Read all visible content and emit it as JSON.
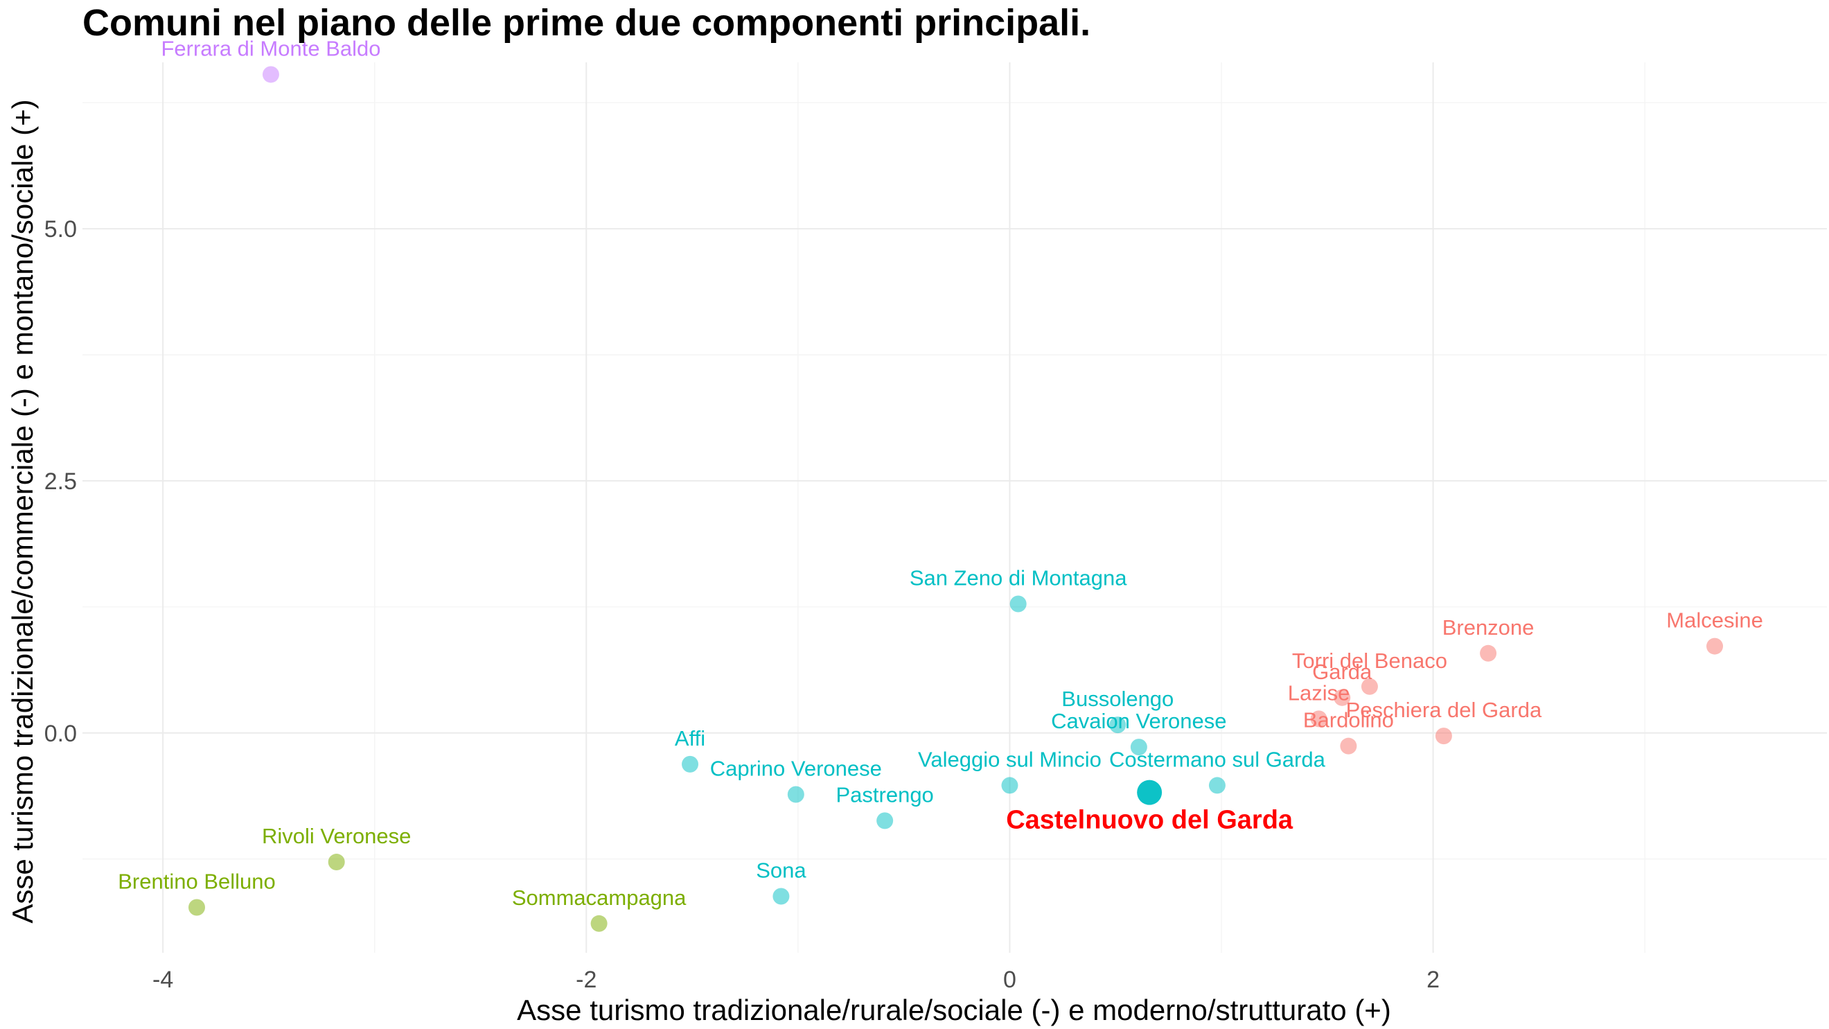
{
  "chart_data": {
    "type": "scatter",
    "title": "Comuni nel piano delle prime due componenti principali.",
    "xlabel": "Asse turismo tradizionale/rurale/sociale (-) e moderno/strutturato (+)",
    "ylabel": "Asse turismo tradizionale/commerciale (-) e montano/sociale (+)",
    "xlim": [
      -4.38,
      3.86
    ],
    "ylim": [
      -2.18,
      6.65
    ],
    "x_ticks": [
      {
        "value": -4,
        "label": "-4"
      },
      {
        "value": -2,
        "label": "-2"
      },
      {
        "value": 0,
        "label": "0"
      },
      {
        "value": 2,
        "label": "2"
      }
    ],
    "y_ticks": [
      {
        "value": 0,
        "label": "0.0"
      },
      {
        "value": 2.5,
        "label": "2.5"
      },
      {
        "value": 5,
        "label": "5.0"
      }
    ],
    "grid": true,
    "legend": "none",
    "colors": {
      "cluster_red": "#f8766d",
      "cluster_olive": "#7cae00",
      "cluster_cyan": "#00bfc4",
      "cluster_purple": "#c77cff",
      "highlight_label": "#ff0000"
    },
    "points": [
      {
        "name": "Ferrara di Monte Baldo",
        "x": -3.49,
        "y": 6.53,
        "cluster": "purple"
      },
      {
        "name": "Malcesine",
        "x": 3.33,
        "y": 0.86,
        "cluster": "red"
      },
      {
        "name": "Brenzone",
        "x": 2.26,
        "y": 0.79,
        "cluster": "red"
      },
      {
        "name": "Torri del Benaco",
        "x": 1.7,
        "y": 0.46,
        "cluster": "red"
      },
      {
        "name": "Garda",
        "x": 1.57,
        "y": 0.35,
        "cluster": "red"
      },
      {
        "name": "Lazise",
        "x": 1.46,
        "y": 0.14,
        "cluster": "red"
      },
      {
        "name": "Peschiera del Garda",
        "x": 2.05,
        "y": -0.03,
        "cluster": "red"
      },
      {
        "name": "Bardolino",
        "x": 1.6,
        "y": -0.13,
        "cluster": "red"
      },
      {
        "name": "San Zeno di Montagna",
        "x": 0.04,
        "y": 1.28,
        "cluster": "cyan"
      },
      {
        "name": "Bussolengo",
        "x": 0.51,
        "y": 0.08,
        "cluster": "cyan"
      },
      {
        "name": "Cavaion Veronese",
        "x": 0.61,
        "y": -0.14,
        "cluster": "cyan"
      },
      {
        "name": "Costermano sul Garda",
        "x": 0.98,
        "y": -0.52,
        "cluster": "cyan"
      },
      {
        "name": "Valeggio sul Mincio",
        "x": 0.0,
        "y": -0.52,
        "cluster": "cyan"
      },
      {
        "name": "Castelnuovo del Garda",
        "x": 0.66,
        "y": -0.59,
        "cluster": "cyan",
        "highlight": true
      },
      {
        "name": "Affi",
        "x": -1.51,
        "y": -0.31,
        "cluster": "cyan"
      },
      {
        "name": "Caprino Veronese",
        "x": -1.01,
        "y": -0.61,
        "cluster": "cyan"
      },
      {
        "name": "Pastrengo",
        "x": -0.59,
        "y": -0.87,
        "cluster": "cyan"
      },
      {
        "name": "Sona",
        "x": -1.08,
        "y": -1.62,
        "cluster": "cyan"
      },
      {
        "name": "Rivoli Veronese",
        "x": -3.18,
        "y": -1.28,
        "cluster": "olive"
      },
      {
        "name": "Brentino Belluno",
        "x": -3.84,
        "y": -1.73,
        "cluster": "olive"
      },
      {
        "name": "Sommacampagna",
        "x": -1.94,
        "y": -1.89,
        "cluster": "olive"
      }
    ]
  }
}
